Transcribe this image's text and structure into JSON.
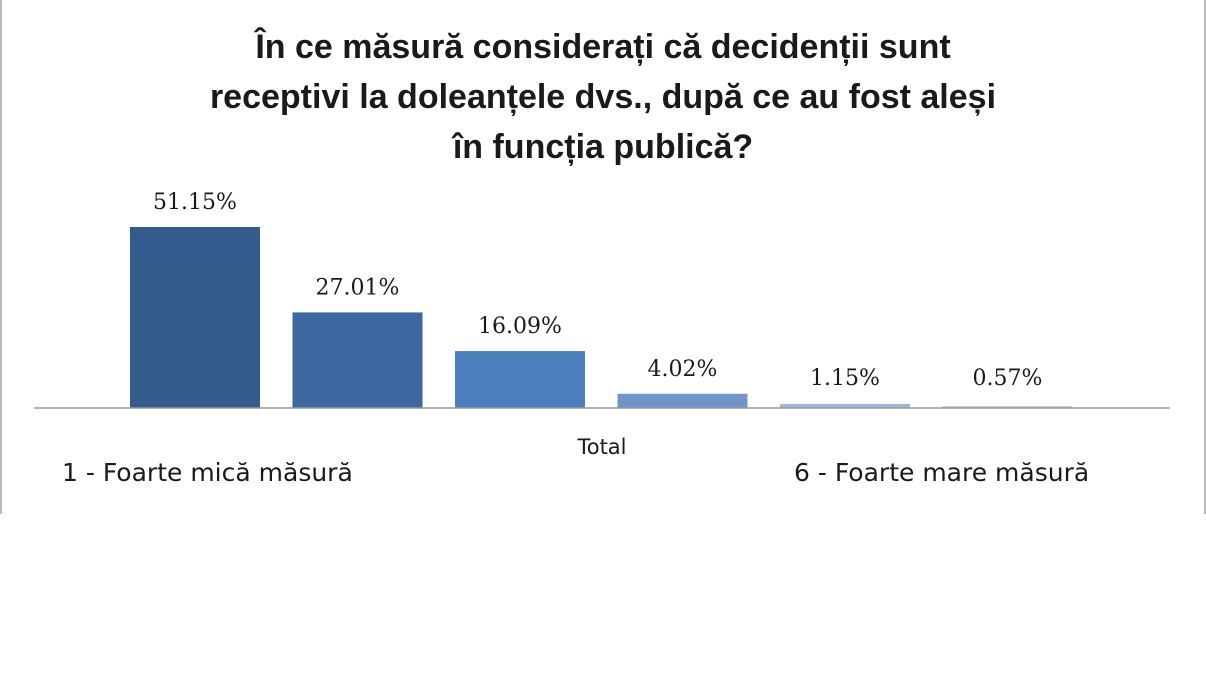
{
  "chart_data": {
    "type": "bar",
    "title_lines": [
      "În ce măsură considerați că decidenții sunt",
      "receptivi la doleanțele dvs., după ce au fost aleși",
      "în funcția publică?"
    ],
    "category": "Total",
    "series": [
      {
        "value": 51.15,
        "label": "51.15%",
        "color": "#335b8c"
      },
      {
        "value": 27.01,
        "label": "27.01%",
        "color": "#3d67a0"
      },
      {
        "value": 16.09,
        "label": "16.09%",
        "color": "#4a7ebd"
      },
      {
        "value": 4.02,
        "label": "4.02%",
        "color": "#7195cb"
      },
      {
        "value": 1.15,
        "label": "1.15%",
        "color": "#9fb6d8"
      },
      {
        "value": 0.57,
        "label": "0.57%",
        "color": "#bccde3"
      }
    ],
    "ylim": [
      0,
      51.15
    ],
    "grid": false,
    "scale_left_label": "1 - Foarte mică măsură",
    "scale_right_label": "6 - Foarte mare măsură"
  }
}
